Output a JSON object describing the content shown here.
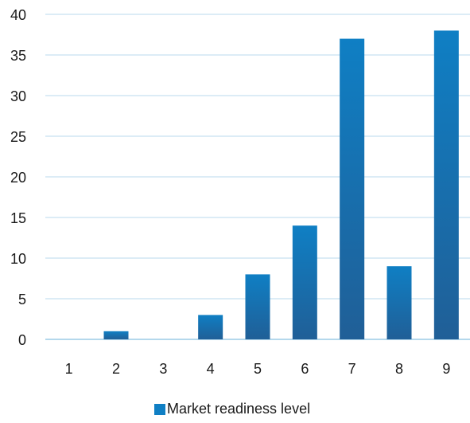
{
  "chart_data": {
    "type": "bar",
    "categories": [
      "1",
      "2",
      "3",
      "4",
      "5",
      "6",
      "7",
      "8",
      "9"
    ],
    "series": [
      {
        "name": "Market readiness level",
        "values": [
          0,
          1,
          0,
          3,
          8,
          14,
          37,
          9,
          38
        ]
      }
    ],
    "y_ticks": [
      "0",
      "5",
      "10",
      "15",
      "20",
      "25",
      "30",
      "35",
      "40"
    ],
    "ylim": [
      0,
      40
    ],
    "grid": true,
    "legend_position": "bottom",
    "colors": {
      "bar_light": "#0f7fc4",
      "bar_dark": "#205f97",
      "grid": "#b8d8ec",
      "axis": "#9ccbe6"
    }
  }
}
